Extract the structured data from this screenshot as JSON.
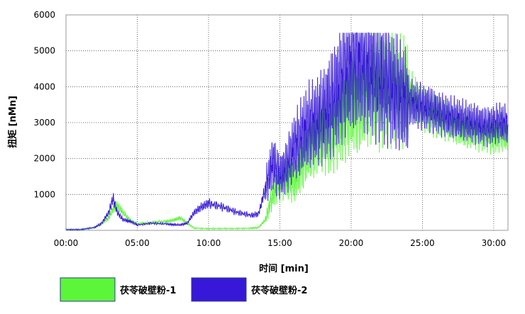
{
  "chart_data": {
    "type": "line",
    "xlabel": "时间 [min]",
    "ylabel": "扭矩 [nMn]",
    "xlim": [
      0,
      31
    ],
    "ylim": [
      0,
      6000
    ],
    "x_ticks": [
      "00:00",
      "05:00",
      "10:00",
      "15:00",
      "20:00",
      "25:00",
      "30:00"
    ],
    "x_tick_values": [
      0,
      5,
      10,
      15,
      20,
      25,
      30
    ],
    "y_ticks": [
      "1000",
      "2000",
      "3000",
      "4000",
      "5000",
      "6000"
    ],
    "y_tick_values": [
      1000,
      2000,
      3000,
      4000,
      5000,
      6000
    ],
    "grid": true,
    "legend_position": "bottom",
    "series": [
      {
        "name": "茯苓破壁粉-1",
        "color": "#5cf53a",
        "x": [
          0,
          1,
          2,
          2.5,
          3,
          3.3,
          3.6,
          4,
          4.5,
          5,
          6,
          7,
          7.5,
          8,
          8.5,
          9,
          10,
          11,
          12,
          13,
          13.5,
          14,
          14.5,
          15,
          15.5,
          16,
          16.5,
          17,
          17.5,
          18,
          18.5,
          19,
          19.5,
          20,
          20.5,
          21,
          21.5,
          22,
          22.5,
          23,
          23.5,
          24,
          24.5,
          25,
          25.5,
          26,
          26.5,
          27,
          27.5,
          28,
          28.5,
          29,
          29.5,
          30,
          30.5,
          31
        ],
        "y": [
          20,
          20,
          80,
          180,
          350,
          600,
          700,
          500,
          280,
          180,
          220,
          250,
          280,
          350,
          200,
          60,
          50,
          50,
          50,
          60,
          80,
          300,
          1000,
          1400,
          1500,
          1300,
          1800,
          2300,
          2500,
          2800,
          2600,
          3000,
          3200,
          3600,
          3500,
          3900,
          4100,
          3900,
          4000,
          4100,
          3800,
          3800,
          3600,
          3400,
          3300,
          3200,
          3100,
          3000,
          2900,
          2800,
          2800,
          2700,
          2700,
          2600,
          2700,
          2650
        ]
      },
      {
        "name": "茯苓破壁粉-2",
        "color": "#3818d8",
        "x": [
          0,
          1,
          2,
          2.5,
          3,
          3.3,
          3.6,
          4,
          4.5,
          5,
          6,
          7,
          7.5,
          8,
          8.5,
          9,
          9.5,
          10,
          11,
          12,
          13,
          13.5,
          14,
          14.5,
          15,
          15.5,
          16,
          16.5,
          17,
          17.5,
          18,
          18.5,
          19,
          19.5,
          20,
          20.5,
          21,
          21.5,
          22,
          22.5,
          23,
          23.5,
          24,
          24.5,
          25,
          25.5,
          26,
          26.5,
          27,
          27.5,
          28,
          28.5,
          29,
          29.5,
          30,
          30.5,
          31
        ],
        "y": [
          20,
          20,
          80,
          200,
          500,
          900,
          500,
          300,
          250,
          150,
          200,
          180,
          160,
          150,
          200,
          500,
          650,
          750,
          650,
          500,
          420,
          450,
          1200,
          1900,
          1500,
          1800,
          2300,
          2600,
          2900,
          3000,
          3200,
          3500,
          3800,
          4300,
          4600,
          4700,
          4600,
          4400,
          4200,
          4100,
          3900,
          3700,
          3600,
          3500,
          3450,
          3400,
          3300,
          3200,
          3150,
          3100,
          3050,
          3000,
          2950,
          2900,
          2950,
          3000,
          2950
        ]
      }
    ]
  }
}
